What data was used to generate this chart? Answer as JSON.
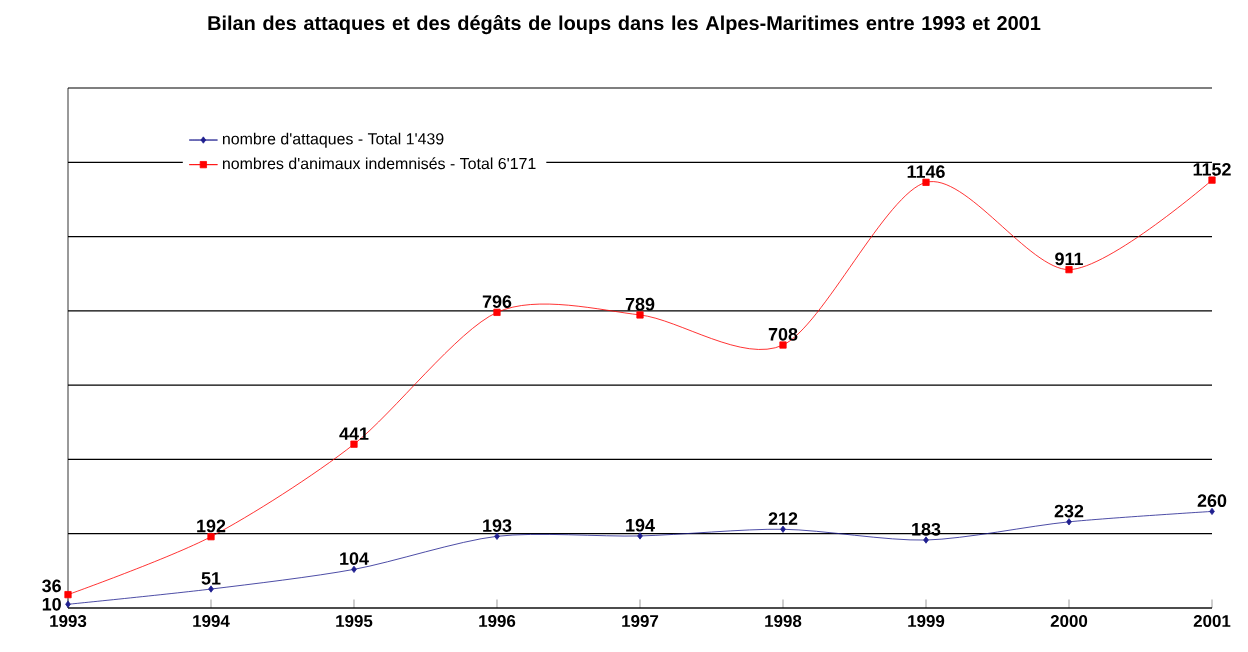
{
  "chart_data": {
    "type": "line",
    "title": "Bilan des attaques et des dégâts de loups dans les Alpes-Maritimes entre 1993 et 2001",
    "x": [
      1993,
      1994,
      1995,
      1996,
      1997,
      1998,
      1999,
      2000,
      2001
    ],
    "series": [
      {
        "name": "nombre d'attaques - Total 1'439",
        "color": "#1f1f8f",
        "marker": "diamond",
        "values": [
          10,
          51,
          104,
          193,
          194,
          212,
          183,
          232,
          260
        ]
      },
      {
        "name": "nombres d'animaux indemnisés - Total 6'171",
        "color": "#ff0000",
        "marker": "square",
        "values": [
          36,
          192,
          441,
          796,
          789,
          708,
          1146,
          911,
          1152
        ]
      }
    ],
    "xlim": [
      1993,
      2001
    ],
    "xticks": [
      1993,
      1994,
      1995,
      1996,
      1997,
      1998,
      1999,
      2000,
      2001
    ],
    "ylim": [
      0,
      1400
    ],
    "yticks": [
      {
        "value": 0,
        "label": null
      },
      {
        "value": 200,
        "label": null
      },
      {
        "value": 400,
        "label": null
      },
      {
        "value": 600,
        "label": null
      },
      {
        "value": 800,
        "label": null
      },
      {
        "value": 1000,
        "label": null
      },
      {
        "value": 1200,
        "label": null
      },
      {
        "value": 1400,
        "label": null
      }
    ],
    "tick_labels": "x",
    "grid": "y",
    "legend": "top left",
    "data_labels": true,
    "line_style": "solid"
  }
}
